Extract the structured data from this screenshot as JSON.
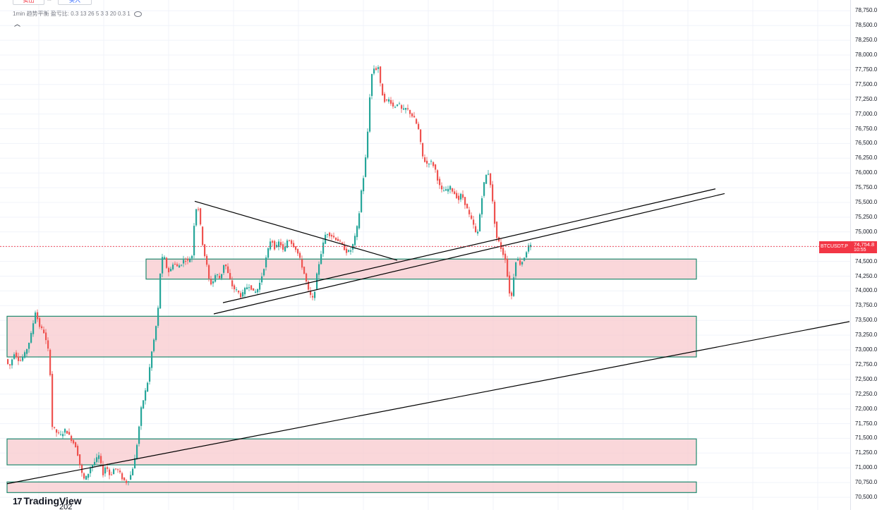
{
  "toolbar": {
    "sell_label": "卖出",
    "spread_label": "...",
    "buy_label": "买入"
  },
  "legend": {
    "text": "1min 趋势平衡 盈亏比: 0.3 13 26 5 3 3 20 0.3 1",
    "eye_icon": "eye-icon"
  },
  "collapse_icon": "chevron-up-icon",
  "branding": {
    "logo_text": "TradingView",
    "logo_icon": "tradingview-logo-icon"
  },
  "time_axis": {
    "visible_label": "202"
  },
  "price_badge": {
    "symbol": "BTCUSDT.P",
    "price": "74,754.8",
    "countdown": "10:55"
  },
  "colors": {
    "up": "#26a69a",
    "down": "#ef5350",
    "zone_fill": "#f8c9cd",
    "zone_border": "#1f8a6f",
    "badge": "#f23645",
    "grid": "#f0f3fa"
  },
  "chart_data": {
    "type": "candlestick",
    "symbol": "BTCUSDT.P",
    "interval": "1min",
    "y_axis": {
      "ylim": [
        70500,
        78750
      ],
      "ticks": [
        "70,500.0",
        "70,750.0",
        "71,000.0",
        "71,250.0",
        "71,500.0",
        "71,750.0",
        "72,000.0",
        "72,250.0",
        "72,500.0",
        "72,750.0",
        "73,000.0",
        "73,250.0",
        "73,500.0",
        "73,750.0",
        "74,000.0",
        "74,250.0",
        "74,500.0",
        "74,750.0",
        "75,000.0",
        "75,250.0",
        "75,500.0",
        "75,750.0",
        "76,000.0",
        "76,250.0",
        "76,500.0",
        "76,750.0",
        "77,000.0",
        "77,250.0",
        "77,500.0",
        "77,750.0",
        "78,000.0",
        "78,250.0",
        "78,500.0",
        "78,750.0"
      ],
      "tick_values": [
        70500,
        70750,
        71000,
        71250,
        71500,
        71750,
        72000,
        72250,
        72500,
        72750,
        73000,
        73250,
        73500,
        73750,
        74000,
        74250,
        74500,
        74750,
        75000,
        75250,
        75500,
        75750,
        76000,
        76250,
        76500,
        76750,
        77000,
        77250,
        77500,
        77750,
        78000,
        78250,
        78500,
        78750
      ]
    },
    "last_price": 74754.8,
    "price_path": [
      [
        0,
        72800
      ],
      [
        8,
        72900
      ],
      [
        15,
        72700
      ],
      [
        22,
        72950
      ],
      [
        30,
        72800
      ],
      [
        38,
        72950
      ],
      [
        45,
        73200
      ],
      [
        52,
        73650
      ],
      [
        58,
        73400
      ],
      [
        64,
        73300
      ],
      [
        72,
        72900
      ],
      [
        76,
        71700
      ],
      [
        82,
        71600
      ],
      [
        88,
        71550
      ],
      [
        95,
        71650
      ],
      [
        102,
        71500
      ],
      [
        110,
        71350
      ],
      [
        115,
        71050
      ],
      [
        120,
        70800
      ],
      [
        125,
        70850
      ],
      [
        130,
        71000
      ],
      [
        136,
        71100
      ],
      [
        142,
        71200
      ],
      [
        148,
        70900
      ],
      [
        152,
        71050
      ],
      [
        158,
        70850
      ],
      [
        164,
        71000
      ],
      [
        170,
        70950
      ],
      [
        176,
        70800
      ],
      [
        182,
        70750
      ],
      [
        188,
        70900
      ],
      [
        194,
        71200
      ],
      [
        198,
        71600
      ],
      [
        202,
        72000
      ],
      [
        206,
        72200
      ],
      [
        212,
        72500
      ],
      [
        216,
        72900
      ],
      [
        222,
        73300
      ],
      [
        226,
        73700
      ],
      [
        230,
        74500
      ],
      [
        234,
        74600
      ],
      [
        238,
        74400
      ],
      [
        242,
        74300
      ],
      [
        248,
        74500
      ],
      [
        252,
        74400
      ],
      [
        258,
        74450
      ],
      [
        264,
        74550
      ],
      [
        268,
        74500
      ],
      [
        274,
        74600
      ],
      [
        278,
        75300
      ],
      [
        282,
        75500
      ],
      [
        286,
        75100
      ],
      [
        290,
        74700
      ],
      [
        294,
        74500
      ],
      [
        298,
        74200
      ],
      [
        302,
        74100
      ],
      [
        308,
        74300
      ],
      [
        314,
        74200
      ],
      [
        320,
        74500
      ],
      [
        326,
        74250
      ],
      [
        332,
        74050
      ],
      [
        338,
        74000
      ],
      [
        344,
        73900
      ],
      [
        350,
        74050
      ],
      [
        356,
        74100
      ],
      [
        362,
        73950
      ],
      [
        368,
        74050
      ],
      [
        374,
        74300
      ],
      [
        380,
        74600
      ],
      [
        386,
        74900
      ],
      [
        392,
        74700
      ],
      [
        398,
        74850
      ],
      [
        404,
        74650
      ],
      [
        410,
        74900
      ],
      [
        416,
        74800
      ],
      [
        422,
        74700
      ],
      [
        428,
        74500
      ],
      [
        434,
        74250
      ],
      [
        440,
        73950
      ],
      [
        446,
        73850
      ],
      [
        452,
        74350
      ],
      [
        458,
        74700
      ],
      [
        464,
        75000
      ],
      [
        470,
        74950
      ],
      [
        476,
        74900
      ],
      [
        482,
        74850
      ],
      [
        488,
        74750
      ],
      [
        494,
        74650
      ],
      [
        500,
        74700
      ],
      [
        506,
        74950
      ],
      [
        510,
        75200
      ],
      [
        514,
        75700
      ],
      [
        518,
        76000
      ],
      [
        522,
        76500
      ],
      [
        526,
        77300
      ],
      [
        530,
        77800
      ],
      [
        534,
        77750
      ],
      [
        538,
        77800
      ],
      [
        542,
        77400
      ],
      [
        548,
        77200
      ],
      [
        554,
        77250
      ],
      [
        560,
        77100
      ],
      [
        566,
        77200
      ],
      [
        572,
        77050
      ],
      [
        578,
        77100
      ],
      [
        584,
        77000
      ],
      [
        590,
        76900
      ],
      [
        596,
        76700
      ],
      [
        600,
        76300
      ],
      [
        606,
        76150
      ],
      [
        612,
        76200
      ],
      [
        618,
        76100
      ],
      [
        624,
        75800
      ],
      [
        628,
        75700
      ],
      [
        634,
        75700
      ],
      [
        640,
        75750
      ],
      [
        646,
        75650
      ],
      [
        652,
        75550
      ],
      [
        656,
        75650
      ],
      [
        662,
        75450
      ],
      [
        668,
        75250
      ],
      [
        672,
        75150
      ],
      [
        678,
        74900
      ],
      [
        682,
        75300
      ],
      [
        686,
        75700
      ],
      [
        690,
        75950
      ],
      [
        694,
        76000
      ],
      [
        698,
        75750
      ],
      [
        702,
        75250
      ],
      [
        706,
        74900
      ],
      [
        710,
        74800
      ],
      [
        714,
        74650
      ],
      [
        718,
        74550
      ],
      [
        722,
        74150
      ],
      [
        726,
        73800
      ],
      [
        730,
        74250
      ],
      [
        734,
        74600
      ],
      [
        738,
        74450
      ],
      [
        742,
        74500
      ],
      [
        746,
        74600
      ],
      [
        750,
        74750
      ],
      [
        754,
        74754.8
      ]
    ],
    "zones": [
      {
        "x_from": 207,
        "x_to": 987,
        "y_low": 74200,
        "y_high": 74540
      },
      {
        "x_from": 10,
        "x_to": 987,
        "y_low": 72880,
        "y_high": 73570
      },
      {
        "x_from": 10,
        "x_to": 987,
        "y_low": 71050,
        "y_high": 71490
      },
      {
        "x_from": 10,
        "x_to": 987,
        "y_low": 70580,
        "y_high": 70760
      }
    ],
    "trendlines": [
      {
        "from": [
          276,
          75520
        ],
        "to": [
          563,
          74520
        ]
      },
      {
        "from": [
          316,
          73800
        ],
        "to": [
          1014,
          75730
        ]
      },
      {
        "from": [
          303,
          73610
        ],
        "to": [
          1027,
          75650
        ]
      },
      {
        "from": [
          10,
          70730
        ],
        "to": [
          1204,
          73480
        ]
      }
    ]
  }
}
